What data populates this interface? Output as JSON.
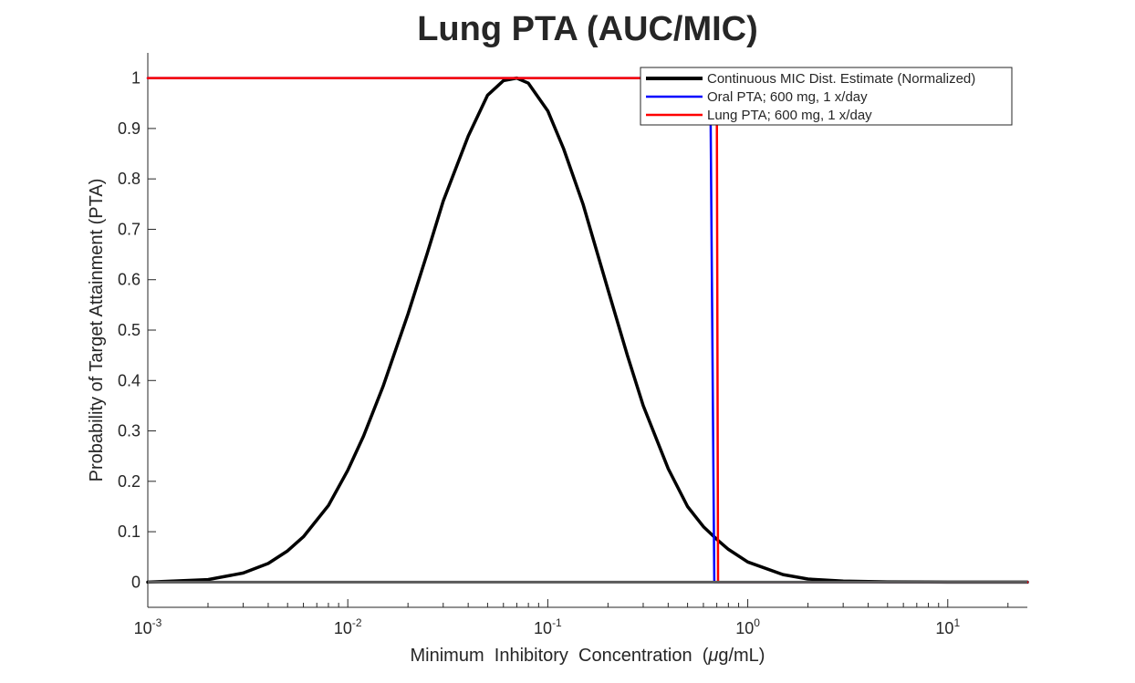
{
  "chart_data": {
    "type": "line",
    "title": "Lung PTA (AUC/MIC)",
    "xlabel_parts": [
      "Minimum",
      "Inhibitory",
      "Concentration",
      "(",
      "μ",
      "g/mL)"
    ],
    "ylabel": "Probability of Target Attainment (PTA)",
    "xscale": "log",
    "xlim": [
      0.001,
      25
    ],
    "ylim": [
      -0.05,
      1.05
    ],
    "x_ticks": [
      {
        "value": 0.001,
        "base": "10",
        "exp": "-3"
      },
      {
        "value": 0.01,
        "base": "10",
        "exp": "-2"
      },
      {
        "value": 0.1,
        "base": "10",
        "exp": "-1"
      },
      {
        "value": 1,
        "base": "10",
        "exp": "0"
      },
      {
        "value": 10,
        "base": "10",
        "exp": "1"
      }
    ],
    "y_ticks": [
      0,
      0.1,
      0.2,
      0.3,
      0.4,
      0.5,
      0.6,
      0.7,
      0.8,
      0.9,
      1
    ],
    "y_tick_labels": [
      "0",
      "0.1",
      "0.2",
      "0.3",
      "0.4",
      "0.5",
      "0.6",
      "0.7",
      "0.8",
      "0.9",
      "1"
    ],
    "grid": false,
    "legend_position": "top-right",
    "series": [
      {
        "name": "Continuous MIC Dist. Estimate (Normalized)",
        "color": "#000000",
        "x": [
          0.001,
          0.002,
          0.003,
          0.004,
          0.005,
          0.006,
          0.008,
          0.01,
          0.012,
          0.015,
          0.02,
          0.025,
          0.03,
          0.04,
          0.05,
          0.06,
          0.07,
          0.08,
          0.1,
          0.12,
          0.15,
          0.2,
          0.25,
          0.3,
          0.4,
          0.5,
          0.6,
          0.7,
          0.8,
          1.0,
          1.5,
          2.0,
          3.0,
          5.0,
          10.0,
          25.0
        ],
        "y": [
          0.0,
          0.005,
          0.018,
          0.037,
          0.062,
          0.09,
          0.152,
          0.222,
          0.29,
          0.388,
          0.532,
          0.653,
          0.756,
          0.885,
          0.966,
          0.995,
          1.0,
          0.99,
          0.935,
          0.86,
          0.75,
          0.58,
          0.45,
          0.35,
          0.225,
          0.15,
          0.11,
          0.085,
          0.065,
          0.04,
          0.015,
          0.006,
          0.002,
          0.0005,
          0.0,
          0.0
        ]
      },
      {
        "name": "Oral PTA; 600 mg, 1 x/day",
        "color": "#0000ff",
        "x": [
          0.001,
          0.6,
          0.65,
          0.68,
          25.0
        ],
        "y": [
          1.0,
          1.0,
          0.98,
          0.0,
          0.0
        ]
      },
      {
        "name": "Lung PTA; 600 mg, 1 x/day",
        "color": "#ff0000",
        "x": [
          0.001,
          0.7,
          0.71,
          25.0
        ],
        "y": [
          1.0,
          1.0,
          0.0,
          0.0
        ]
      }
    ]
  }
}
